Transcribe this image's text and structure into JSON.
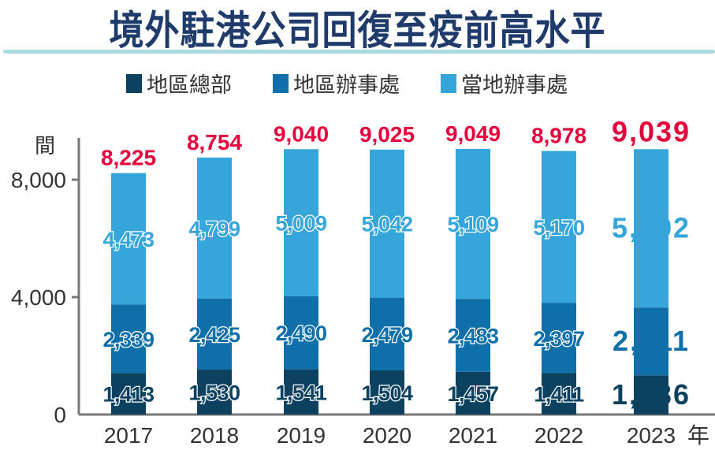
{
  "title": "境外駐港公司回復至疫前高水平",
  "chart_data": {
    "type": "bar",
    "stacked": true,
    "title": "境外駐港公司回復至疫前高水平",
    "ylabel": "間",
    "xlabel": "年",
    "ylim": [
      0,
      9400
    ],
    "yticks": [
      "0",
      "4,000",
      "8,000"
    ],
    "ytick_values": [
      0,
      4000,
      8000
    ],
    "grid": false,
    "legend_position": "top",
    "categories": [
      "2017",
      "2018",
      "2019",
      "2020",
      "2021",
      "2022",
      "2023"
    ],
    "series": [
      {
        "name": "地區總部",
        "color": "#0c4260",
        "values": [
          1413,
          1530,
          1541,
          1504,
          1457,
          1411,
          1336
        ],
        "labels": [
          "1,413",
          "1,530",
          "1,541",
          "1,504",
          "1,457",
          "1,411",
          "1,336"
        ]
      },
      {
        "name": "地區辦事處",
        "color": "#0f6fa9",
        "values": [
          2339,
          2425,
          2490,
          2479,
          2483,
          2397,
          2311
        ],
        "labels": [
          "2,339",
          "2,425",
          "2,490",
          "2,479",
          "2,483",
          "2,397",
          "2,311"
        ]
      },
      {
        "name": "當地辦事處",
        "color": "#36a5da",
        "values": [
          4473,
          4799,
          5009,
          5042,
          5109,
          5170,
          5392
        ],
        "labels": [
          "4,473",
          "4,799",
          "5,009",
          "5,042",
          "5,109",
          "5,170",
          "5,392"
        ]
      }
    ],
    "totals": [
      8225,
      8754,
      9040,
      9025,
      9049,
      8978,
      9039
    ],
    "total_labels": [
      "8,225",
      "8,754",
      "9,040",
      "9,025",
      "9,049",
      "8,978",
      "9,039"
    ],
    "total_color": "#e4003b",
    "highlight_category": "2023"
  }
}
